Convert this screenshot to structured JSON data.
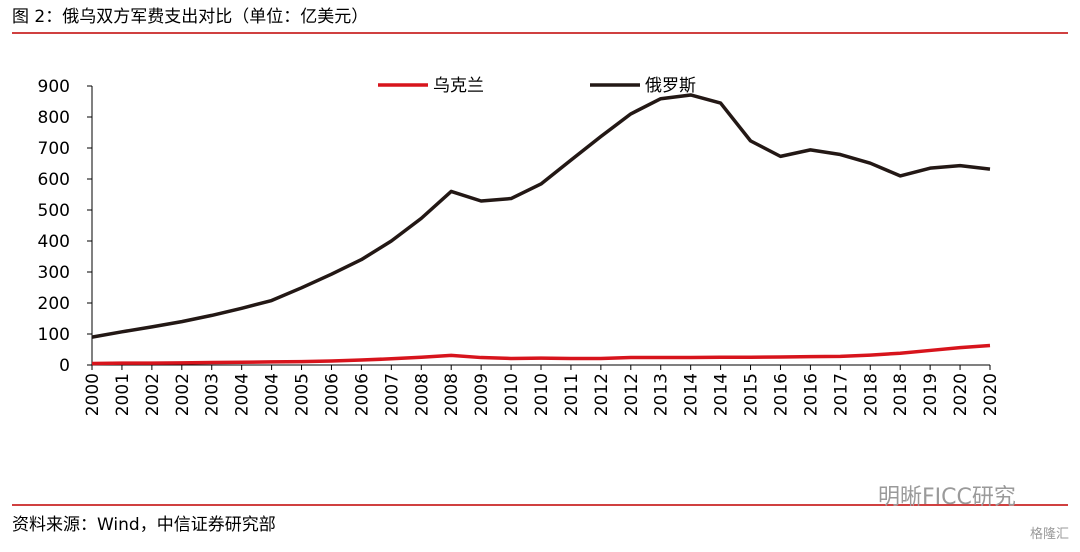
{
  "chart_data": {
    "type": "line",
    "title": "图 2：俄乌双方军费支出对比（单位：亿美元）",
    "source": "资料来源：Wind，中信证券研究部",
    "watermark": "明晰FICC研究",
    "watermark2": "格隆汇",
    "categories": [
      "2000",
      "2001",
      "2002",
      "2002",
      "2003",
      "2004",
      "2004",
      "2005",
      "2006",
      "2006",
      "2007",
      "2008",
      "2008",
      "2009",
      "2010",
      "2010",
      "2011",
      "2012",
      "2012",
      "2013",
      "2014",
      "2014",
      "2015",
      "2016",
      "2016",
      "2017",
      "2018",
      "2018",
      "2019",
      "2020",
      "2020"
    ],
    "series": [
      {
        "name": "乌克兰",
        "color": "#d7141c",
        "values": [
          5,
          6,
          6,
          7,
          8,
          9,
          10,
          11,
          13,
          16,
          20,
          25,
          31,
          24,
          21,
          22,
          21,
          21,
          24,
          24,
          24,
          25,
          25,
          26,
          27,
          28,
          32,
          38,
          47,
          56,
          63
        ]
      },
      {
        "name": "俄罗斯",
        "color": "#231815",
        "values": [
          90,
          107,
          123,
          140,
          160,
          183,
          208,
          249,
          293,
          340,
          400,
          473,
          560,
          529,
          537,
          584,
          661,
          737,
          810,
          859,
          871,
          845,
          723,
          673,
          694,
          679,
          651,
          610,
          635,
          643,
          632
        ]
      }
    ],
    "ylim": [
      0,
      900
    ],
    "yticks": [
      0,
      100,
      200,
      300,
      400,
      500,
      600,
      700,
      800,
      900
    ],
    "legend": "top"
  }
}
